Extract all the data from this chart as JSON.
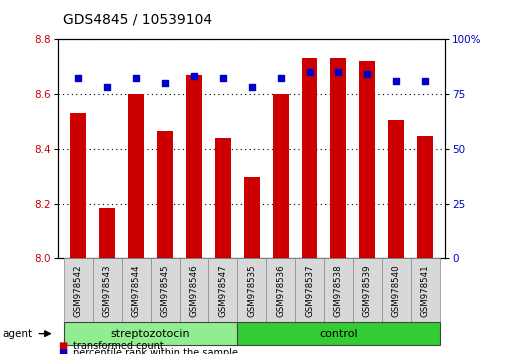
{
  "title": "GDS4845 / 10539104",
  "samples": [
    "GSM978542",
    "GSM978543",
    "GSM978544",
    "GSM978545",
    "GSM978546",
    "GSM978547",
    "GSM978535",
    "GSM978536",
    "GSM978537",
    "GSM978538",
    "GSM978539",
    "GSM978540",
    "GSM978541"
  ],
  "bar_values": [
    8.53,
    8.185,
    8.6,
    8.465,
    8.67,
    8.44,
    8.295,
    8.6,
    8.73,
    8.73,
    8.72,
    8.505,
    8.445
  ],
  "percentile_values": [
    82,
    78,
    82,
    80,
    83,
    82,
    78,
    82,
    85,
    85,
    84,
    81,
    81
  ],
  "bar_bottom": 8.0,
  "ylim_left": [
    8.0,
    8.8
  ],
  "ylim_right": [
    0,
    100
  ],
  "yticks_left": [
    8.0,
    8.2,
    8.4,
    8.6,
    8.8
  ],
  "yticks_right": [
    0,
    25,
    50,
    75,
    100
  ],
  "bar_color": "#cc0000",
  "dot_color": "#0000cc",
  "group1_label": "streptozotocin",
  "group2_label": "control",
  "group1_indices": [
    0,
    1,
    2,
    3,
    4,
    5
  ],
  "group2_indices": [
    6,
    7,
    8,
    9,
    10,
    11,
    12
  ],
  "group1_color": "#90ee90",
  "group2_color": "#32cd32",
  "agent_label": "agent",
  "legend_bar_label": "transformed count",
  "legend_dot_label": "percentile rank within the sample",
  "title_fontsize": 10,
  "tick_fontsize": 7.5,
  "label_fontsize": 8,
  "bar_width": 0.55,
  "background_color": "#ffffff",
  "plot_bg_color": "#ffffff"
}
